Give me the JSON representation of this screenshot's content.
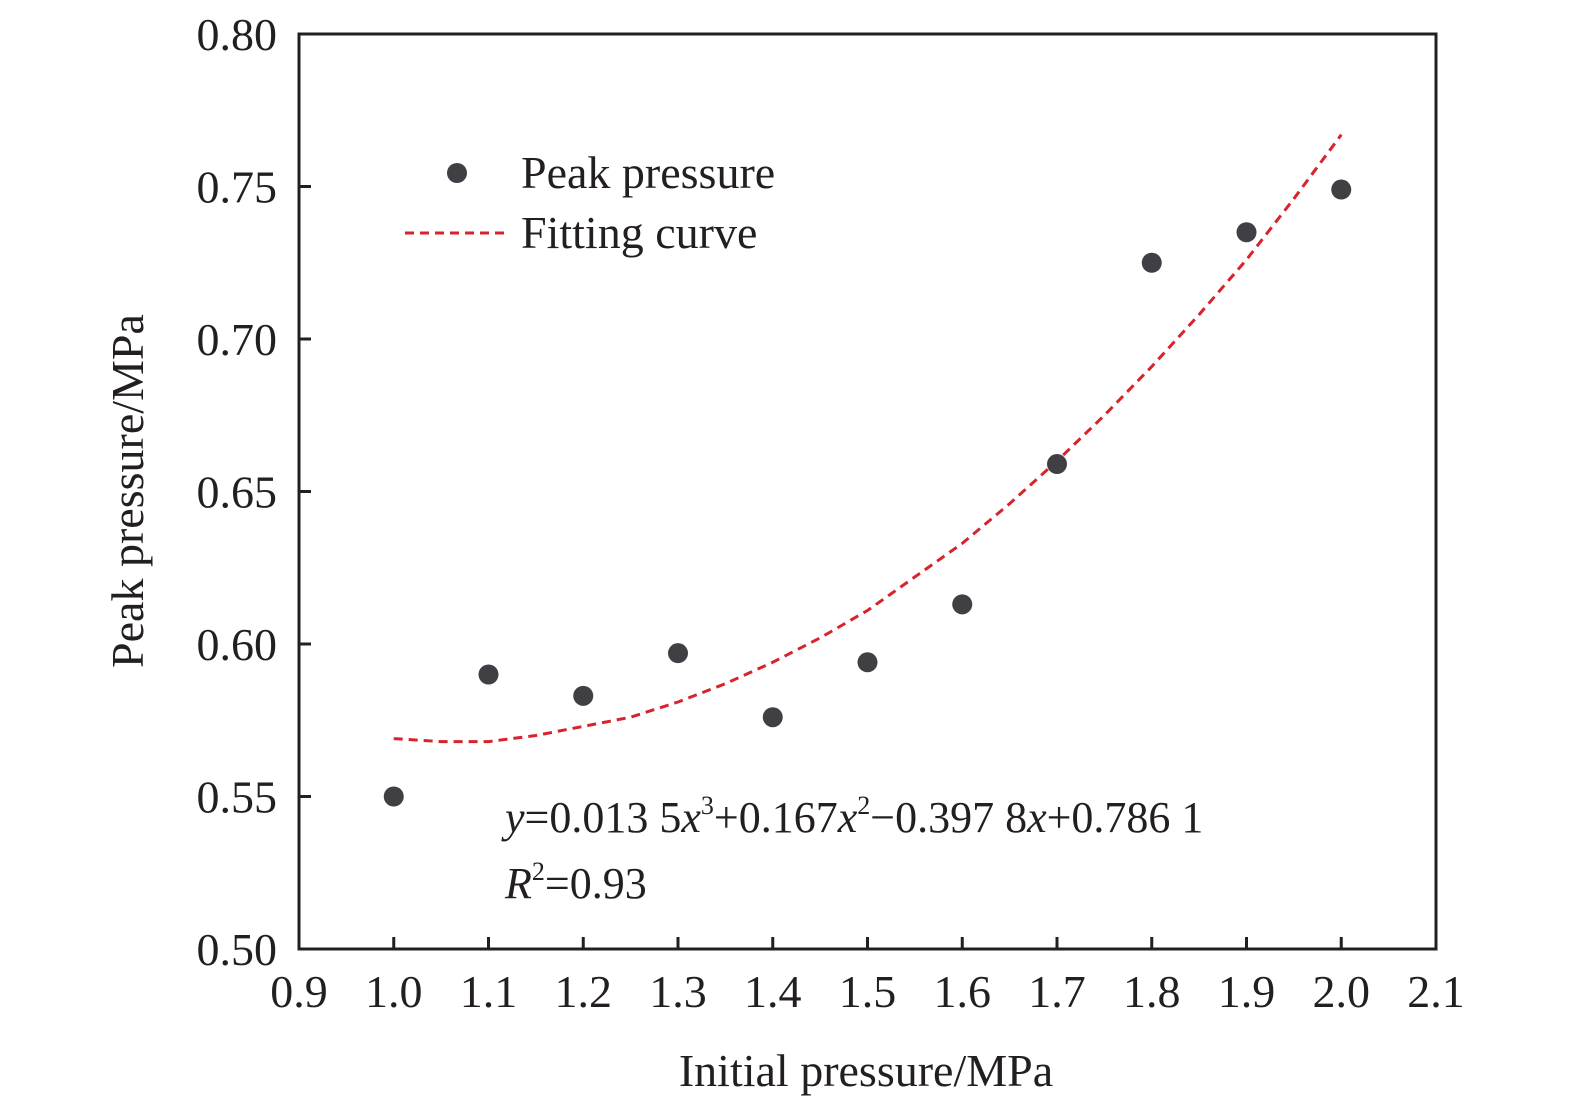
{
  "chart_data": {
    "type": "scatter",
    "xlabel": "Initial pressure/MPa",
    "ylabel": "Peak pressure/MPa",
    "xlim": [
      0.9,
      2.1
    ],
    "ylim": [
      0.5,
      0.8
    ],
    "xticks": [
      "0.9",
      "1.0",
      "1.1",
      "1.2",
      "1.3",
      "1.4",
      "1.5",
      "1.6",
      "1.7",
      "1.8",
      "1.9",
      "2.0",
      "2.1"
    ],
    "yticks": [
      "0.50",
      "0.55",
      "0.60",
      "0.65",
      "0.70",
      "0.75",
      "0.80"
    ],
    "legend_position": "top-left",
    "grid": false,
    "series": [
      {
        "name": "Peak pressure",
        "kind": "scatter",
        "color": "#3f3f44",
        "x": [
          1.0,
          1.1,
          1.2,
          1.3,
          1.4,
          1.5,
          1.6,
          1.7,
          1.8,
          1.9,
          2.0
        ],
        "y": [
          0.55,
          0.59,
          0.583,
          0.597,
          0.576,
          0.594,
          0.613,
          0.659,
          0.725,
          0.735,
          0.749
        ]
      },
      {
        "name": "Fitting curve",
        "kind": "line",
        "style": "dashed",
        "color": "#d7232b",
        "x": [
          1.0,
          1.05,
          1.1,
          1.15,
          1.2,
          1.25,
          1.3,
          1.35,
          1.4,
          1.45,
          1.5,
          1.55,
          1.6,
          1.65,
          1.7,
          1.75,
          1.8,
          1.85,
          1.9,
          1.95,
          2.0
        ],
        "y": [
          0.569,
          0.568,
          0.568,
          0.57,
          0.573,
          0.576,
          0.581,
          0.587,
          0.594,
          0.602,
          0.611,
          0.622,
          0.633,
          0.646,
          0.66,
          0.675,
          0.691,
          0.708,
          0.726,
          0.746,
          0.767
        ]
      }
    ],
    "annotations": {
      "equation": {
        "y_var": "y",
        "eq1": "=0.013 5",
        "x_var": "x",
        "exp3": "3",
        "eq2": "+0.167",
        "exp2": "2",
        "eq3": "−0.397 8",
        "eq4": "+0.786 1"
      },
      "r2": {
        "r_var": "R",
        "exp": "2",
        "value": "=0.93"
      }
    }
  }
}
